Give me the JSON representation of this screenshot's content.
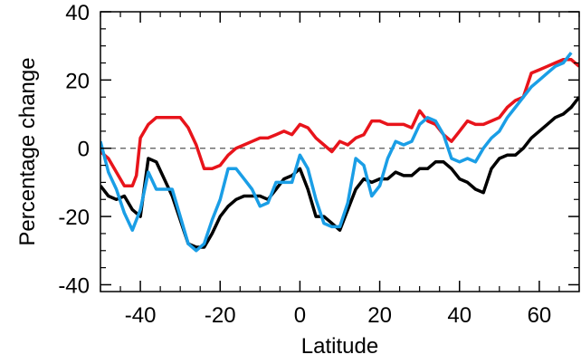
{
  "chart_data": {
    "type": "line",
    "xlabel": "Latitude",
    "ylabel": "Percentage change",
    "xlim": [
      -50,
      70
    ],
    "ylim": [
      -42,
      40
    ],
    "xticks": [
      -40,
      -20,
      0,
      20,
      40,
      60
    ],
    "yticks": [
      -40,
      -20,
      0,
      20,
      40
    ],
    "xtick_labels": [
      "-40",
      "-20",
      "0",
      "20",
      "40",
      "60"
    ],
    "ytick_labels": [
      "-40",
      "-20",
      "0",
      "20",
      "40"
    ],
    "reference_line": {
      "y": 0,
      "style": "dashed",
      "color": "#555555"
    },
    "series": [
      {
        "color": "#000000",
        "points": [
          [
            -50,
            -11
          ],
          [
            -48,
            -14
          ],
          [
            -46,
            -15
          ],
          [
            -44,
            -14
          ],
          [
            -42,
            -18
          ],
          [
            -40,
            -20
          ],
          [
            -38,
            -3
          ],
          [
            -36,
            -4
          ],
          [
            -34,
            -9
          ],
          [
            -32,
            -14
          ],
          [
            -30,
            -21
          ],
          [
            -28,
            -28
          ],
          [
            -26,
            -29
          ],
          [
            -24,
            -29
          ],
          [
            -22,
            -25
          ],
          [
            -20,
            -20
          ],
          [
            -18,
            -17
          ],
          [
            -16,
            -15
          ],
          [
            -14,
            -14
          ],
          [
            -12,
            -14
          ],
          [
            -10,
            -14
          ],
          [
            -8,
            -15
          ],
          [
            -6,
            -12
          ],
          [
            -4,
            -9
          ],
          [
            -2,
            -8
          ],
          [
            0,
            -6
          ],
          [
            2,
            -12
          ],
          [
            4,
            -20
          ],
          [
            6,
            -20
          ],
          [
            8,
            -22
          ],
          [
            10,
            -24
          ],
          [
            12,
            -18
          ],
          [
            14,
            -12
          ],
          [
            16,
            -9
          ],
          [
            18,
            -10
          ],
          [
            20,
            -9
          ],
          [
            22,
            -9
          ],
          [
            24,
            -7
          ],
          [
            26,
            -8
          ],
          [
            28,
            -8
          ],
          [
            30,
            -6
          ],
          [
            32,
            -6
          ],
          [
            34,
            -4
          ],
          [
            36,
            -4
          ],
          [
            38,
            -6
          ],
          [
            40,
            -9
          ],
          [
            42,
            -10
          ],
          [
            44,
            -12
          ],
          [
            46,
            -13
          ],
          [
            48,
            -6
          ],
          [
            50,
            -3
          ],
          [
            52,
            -2
          ],
          [
            54,
            -2
          ],
          [
            56,
            0
          ],
          [
            58,
            3
          ],
          [
            60,
            5
          ],
          [
            62,
            7
          ],
          [
            64,
            9
          ],
          [
            66,
            10
          ],
          [
            68,
            12
          ],
          [
            70,
            15
          ]
        ]
      },
      {
        "color": "#e8141b",
        "points": [
          [
            -50,
            -1
          ],
          [
            -48,
            -3
          ],
          [
            -46,
            -7
          ],
          [
            -44,
            -11
          ],
          [
            -42,
            -11
          ],
          [
            -41,
            -8
          ],
          [
            -40,
            3
          ],
          [
            -38,
            7
          ],
          [
            -36,
            9
          ],
          [
            -34,
            9
          ],
          [
            -32,
            9
          ],
          [
            -30,
            9
          ],
          [
            -28,
            6
          ],
          [
            -26,
            1
          ],
          [
            -24,
            -6
          ],
          [
            -22,
            -6
          ],
          [
            -20,
            -5
          ],
          [
            -18,
            -2
          ],
          [
            -16,
            0
          ],
          [
            -14,
            1
          ],
          [
            -12,
            2
          ],
          [
            -10,
            3
          ],
          [
            -8,
            3
          ],
          [
            -6,
            4
          ],
          [
            -4,
            5
          ],
          [
            -2,
            4
          ],
          [
            0,
            7
          ],
          [
            2,
            6
          ],
          [
            4,
            3
          ],
          [
            6,
            1
          ],
          [
            8,
            -1
          ],
          [
            10,
            2
          ],
          [
            12,
            1
          ],
          [
            14,
            3
          ],
          [
            16,
            4
          ],
          [
            18,
            8
          ],
          [
            20,
            8
          ],
          [
            22,
            7
          ],
          [
            24,
            7
          ],
          [
            26,
            7
          ],
          [
            28,
            6
          ],
          [
            30,
            11
          ],
          [
            32,
            8
          ],
          [
            34,
            7
          ],
          [
            36,
            4
          ],
          [
            38,
            2
          ],
          [
            40,
            5
          ],
          [
            42,
            8
          ],
          [
            44,
            7
          ],
          [
            46,
            7
          ],
          [
            48,
            8
          ],
          [
            50,
            9
          ],
          [
            52,
            12
          ],
          [
            54,
            14
          ],
          [
            56,
            15
          ],
          [
            58,
            22
          ],
          [
            60,
            23
          ],
          [
            62,
            24
          ],
          [
            64,
            25
          ],
          [
            66,
            26
          ],
          [
            68,
            26
          ],
          [
            70,
            24
          ]
        ]
      },
      {
        "color": "#1a9ee6",
        "points": [
          [
            -50,
            2
          ],
          [
            -48,
            -7
          ],
          [
            -46,
            -12
          ],
          [
            -44,
            -19
          ],
          [
            -42,
            -24
          ],
          [
            -40,
            -18
          ],
          [
            -38,
            -7
          ],
          [
            -36,
            -12
          ],
          [
            -34,
            -12
          ],
          [
            -32,
            -12
          ],
          [
            -30,
            -20
          ],
          [
            -28,
            -28
          ],
          [
            -26,
            -30
          ],
          [
            -24,
            -28
          ],
          [
            -22,
            -21
          ],
          [
            -20,
            -15
          ],
          [
            -18,
            -6
          ],
          [
            -16,
            -6
          ],
          [
            -14,
            -9
          ],
          [
            -12,
            -12
          ],
          [
            -10,
            -17
          ],
          [
            -8,
            -16
          ],
          [
            -6,
            -10
          ],
          [
            -4,
            -10
          ],
          [
            -2,
            -10
          ],
          [
            0,
            -2
          ],
          [
            2,
            -6
          ],
          [
            4,
            -15
          ],
          [
            6,
            -22
          ],
          [
            8,
            -23
          ],
          [
            10,
            -23
          ],
          [
            12,
            -16
          ],
          [
            14,
            -3
          ],
          [
            16,
            -5
          ],
          [
            18,
            -14
          ],
          [
            20,
            -11
          ],
          [
            22,
            -3
          ],
          [
            24,
            2
          ],
          [
            26,
            1
          ],
          [
            28,
            2
          ],
          [
            30,
            7
          ],
          [
            32,
            9
          ],
          [
            34,
            8
          ],
          [
            36,
            4
          ],
          [
            38,
            -3
          ],
          [
            40,
            -4
          ],
          [
            42,
            -3
          ],
          [
            44,
            -4
          ],
          [
            46,
            0
          ],
          [
            48,
            3
          ],
          [
            50,
            5
          ],
          [
            52,
            9
          ],
          [
            54,
            12
          ],
          [
            56,
            15
          ],
          [
            58,
            18
          ],
          [
            60,
            20
          ],
          [
            62,
            22
          ],
          [
            64,
            24
          ],
          [
            66,
            25
          ],
          [
            68,
            28
          ]
        ]
      }
    ]
  }
}
